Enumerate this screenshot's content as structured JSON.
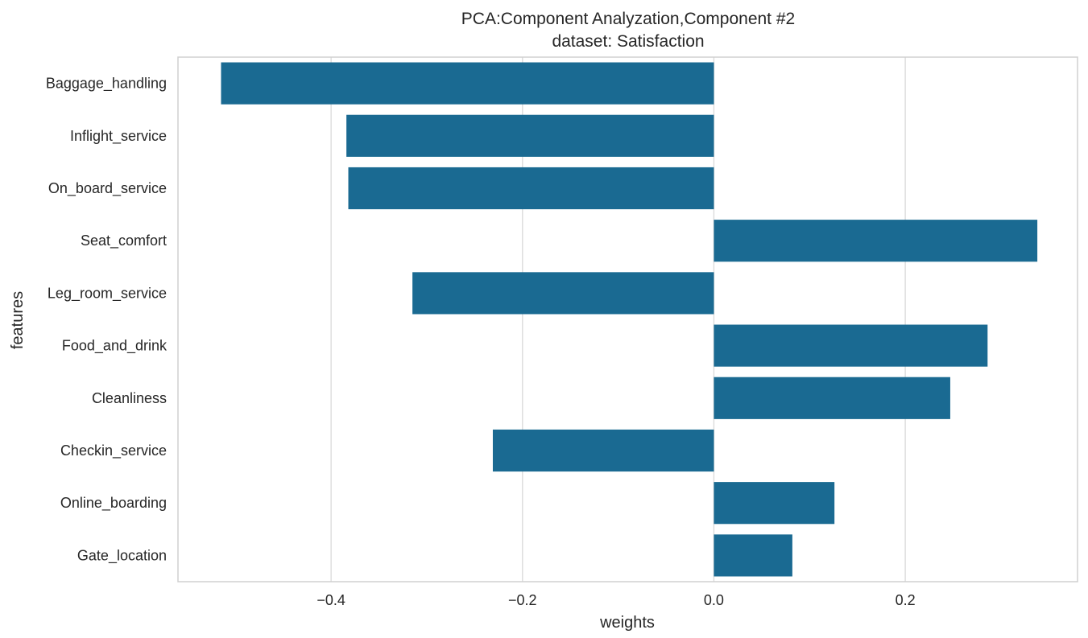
{
  "chart_data": {
    "type": "bar",
    "orientation": "horizontal",
    "title": "PCA:Component Analyzation,Component #2",
    "subtitle": "dataset: Satisfaction",
    "xlabel": "weights",
    "ylabel": "features",
    "xlim": [
      -0.56,
      0.38
    ],
    "xticks": [
      -0.4,
      -0.2,
      0.0,
      0.2
    ],
    "xtick_labels": [
      "−0.4",
      "−0.2",
      "0.0",
      "0.2"
    ],
    "grid": "vertical",
    "legend": "none",
    "categories": [
      "Baggage_handling",
      "Inflight_service",
      "On_board_service",
      "Seat_comfort",
      "Leg_room_service",
      "Food_and_drink",
      "Cleanliness",
      "Checkin_service",
      "Online_boarding",
      "Gate_location"
    ],
    "values": [
      -0.515,
      -0.384,
      -0.382,
      0.338,
      -0.315,
      0.286,
      0.247,
      -0.231,
      0.126,
      0.082
    ]
  },
  "colors": {
    "bar": "#1a6a92",
    "grid": "#d9d9d9",
    "frame": "#d0d0d0",
    "background": "#ffffff",
    "text": "#262626"
  }
}
